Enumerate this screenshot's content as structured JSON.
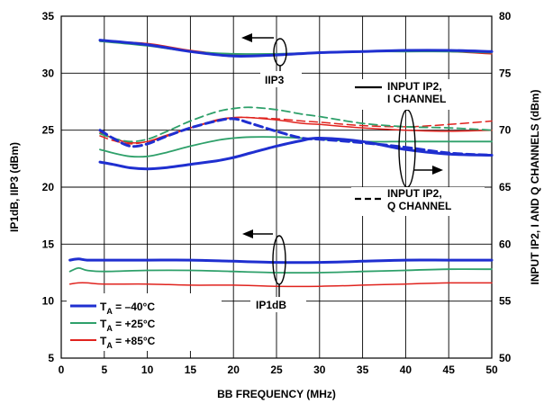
{
  "chart_data": {
    "type": "line",
    "xlabel": "BB FREQUENCY (MHz)",
    "ylabel_left": "IP1dB, IIP3 (dBm)",
    "ylabel_right": "INPUT IP2, I AND Q CHANNELS (dBm)",
    "xlim": [
      0,
      50
    ],
    "ylim_left": [
      5,
      35
    ],
    "ylim_right": [
      50,
      80
    ],
    "x_ticks": [
      "0",
      "5",
      "10",
      "15",
      "20",
      "25",
      "30",
      "35",
      "40",
      "45",
      "50"
    ],
    "y_ticks_left": [
      "5",
      "10",
      "15",
      "20",
      "25",
      "30",
      "35"
    ],
    "y_ticks_right": [
      "50",
      "55",
      "60",
      "65",
      "70",
      "75",
      "80"
    ],
    "grid": true,
    "legend_position": "bottom-left",
    "colors": {
      "blue": "#1f2fd0",
      "green": "#2ea06a",
      "red": "#e0231e"
    },
    "legend": [
      {
        "sym": "T",
        "sub": "A",
        "text": " = –40°C",
        "color": "#1f2fd0"
      },
      {
        "sym": "T",
        "sub": "A",
        "text": " = +25°C",
        "color": "#2ea06a"
      },
      {
        "sym": "T",
        "sub": "A",
        "text": " = +85°C",
        "color": "#e0231e"
      }
    ],
    "annotations": {
      "iip3": "IIP3",
      "ip1db": "IP1dB",
      "ip2_i_line1": "INPUT IP2,",
      "ip2_i_line2": "I CHANNEL",
      "ip2_q_line1": "INPUT IP2,",
      "ip2_q_line2": "Q CHANNEL"
    },
    "series": [
      {
        "group": "IIP3",
        "temp": "-40",
        "color": "#1f2fd0",
        "axis": "left",
        "dash": false,
        "width": 3,
        "x": [
          4.5,
          10,
          15,
          20,
          25,
          30,
          35,
          40,
          45,
          50
        ],
        "y": [
          32.9,
          32.5,
          31.9,
          31.5,
          31.6,
          31.8,
          31.9,
          32.0,
          32.0,
          31.9
        ]
      },
      {
        "group": "IIP3",
        "temp": "+25",
        "color": "#2ea06a",
        "axis": "left",
        "dash": false,
        "width": 1.8,
        "x": [
          4.5,
          10,
          15,
          20,
          25,
          30,
          35,
          40,
          45,
          50
        ],
        "y": [
          32.8,
          32.4,
          31.9,
          31.7,
          31.7,
          31.8,
          31.9,
          31.9,
          31.9,
          31.8
        ]
      },
      {
        "group": "IIP3",
        "temp": "+85",
        "color": "#e0231e",
        "axis": "left",
        "dash": false,
        "width": 1.5,
        "x": [
          4.5,
          10,
          15,
          20,
          25,
          30,
          35,
          40,
          45,
          50
        ],
        "y": [
          32.8,
          32.6,
          32.0,
          31.6,
          31.6,
          31.8,
          31.9,
          32.0,
          31.9,
          31.7
        ]
      },
      {
        "group": "IP1dB",
        "temp": "-40",
        "color": "#1f2fd0",
        "axis": "left",
        "dash": false,
        "width": 3,
        "x": [
          1,
          2,
          3,
          5,
          10,
          15,
          20,
          25,
          30,
          35,
          40,
          45,
          50
        ],
        "y": [
          13.6,
          13.7,
          13.6,
          13.6,
          13.6,
          13.6,
          13.5,
          13.4,
          13.4,
          13.5,
          13.6,
          13.6,
          13.6
        ]
      },
      {
        "group": "IP1dB",
        "temp": "+25",
        "color": "#2ea06a",
        "axis": "left",
        "dash": false,
        "width": 1.8,
        "x": [
          1,
          2,
          3,
          5,
          10,
          15,
          20,
          25,
          30,
          35,
          40,
          45,
          50
        ],
        "y": [
          12.6,
          12.9,
          12.7,
          12.6,
          12.7,
          12.7,
          12.6,
          12.5,
          12.5,
          12.6,
          12.7,
          12.8,
          12.8
        ]
      },
      {
        "group": "IP1dB",
        "temp": "+85",
        "color": "#e0231e",
        "axis": "left",
        "dash": false,
        "width": 1.5,
        "x": [
          1,
          2,
          3,
          5,
          10,
          15,
          20,
          25,
          30,
          35,
          40,
          45,
          50
        ],
        "y": [
          11.5,
          11.6,
          11.6,
          11.5,
          11.5,
          11.4,
          11.4,
          11.3,
          11.3,
          11.4,
          11.5,
          11.6,
          11.6
        ]
      },
      {
        "group": "Input IP2 I channel",
        "temp": "-40",
        "color": "#1f2fd0",
        "axis": "right",
        "dash": false,
        "width": 3,
        "x": [
          4.5,
          6,
          8,
          10,
          12,
          15,
          18,
          20,
          22,
          25,
          28,
          30,
          35,
          40,
          45,
          50
        ],
        "y": [
          67.2,
          67.0,
          66.7,
          66.6,
          66.7,
          67.0,
          67.3,
          67.6,
          68.0,
          68.6,
          69.1,
          69.3,
          69.0,
          68.3,
          67.9,
          67.8
        ]
      },
      {
        "group": "Input IP2 I channel",
        "temp": "+25",
        "color": "#2ea06a",
        "axis": "right",
        "dash": false,
        "width": 1.8,
        "x": [
          4.5,
          6,
          8,
          10,
          12,
          15,
          18,
          20,
          22,
          25,
          28,
          30,
          35,
          40,
          45,
          50
        ],
        "y": [
          68.3,
          68.0,
          67.7,
          67.7,
          68.0,
          68.6,
          69.1,
          69.3,
          69.4,
          69.4,
          69.3,
          69.2,
          69.0,
          69.0,
          69.0,
          69.0
        ]
      },
      {
        "group": "Input IP2 I channel",
        "temp": "+85",
        "color": "#e0231e",
        "axis": "right",
        "dash": false,
        "width": 1.5,
        "x": [
          4.5,
          6,
          8,
          10,
          12,
          15,
          18,
          20,
          22,
          25,
          28,
          30,
          35,
          40,
          45,
          50
        ],
        "y": [
          69.8,
          69.3,
          68.9,
          69.0,
          69.5,
          70.2,
          70.9,
          71.1,
          71.1,
          70.9,
          70.6,
          70.5,
          70.2,
          70.0,
          69.9,
          70.0
        ]
      },
      {
        "group": "Input IP2 Q channel",
        "temp": "-40",
        "color": "#1f2fd0",
        "axis": "right",
        "dash": true,
        "width": 3,
        "x": [
          4.5,
          6,
          8,
          10,
          12,
          15,
          18,
          20,
          22,
          25,
          28,
          30,
          35,
          40,
          45,
          50
        ],
        "y": [
          70.0,
          69.3,
          68.6,
          68.8,
          69.4,
          70.2,
          70.8,
          71.0,
          70.6,
          69.9,
          69.3,
          69.2,
          68.9,
          68.5,
          68.0,
          67.8
        ]
      },
      {
        "group": "Input IP2 Q channel",
        "temp": "+25",
        "color": "#2ea06a",
        "axis": "right",
        "dash": true,
        "width": 1.8,
        "x": [
          4.5,
          6,
          8,
          10,
          12,
          15,
          18,
          20,
          22,
          25,
          28,
          30,
          35,
          40,
          45,
          50
        ],
        "y": [
          69.7,
          69.3,
          69.0,
          69.2,
          69.8,
          70.8,
          71.6,
          71.9,
          72.0,
          71.8,
          71.4,
          71.2,
          70.6,
          70.3,
          70.2,
          70.0
        ]
      },
      {
        "group": "Input IP2 Q channel",
        "temp": "+85",
        "color": "#e0231e",
        "axis": "right",
        "dash": true,
        "width": 1.5,
        "x": [
          4.5,
          6,
          8,
          10,
          12,
          15,
          18,
          20,
          22,
          25,
          28,
          30,
          35,
          40,
          45,
          50
        ],
        "y": [
          69.5,
          69.1,
          68.8,
          69.0,
          69.4,
          70.2,
          70.8,
          71.1,
          71.1,
          71.0,
          70.8,
          70.7,
          70.4,
          70.3,
          70.5,
          70.8
        ]
      }
    ]
  }
}
